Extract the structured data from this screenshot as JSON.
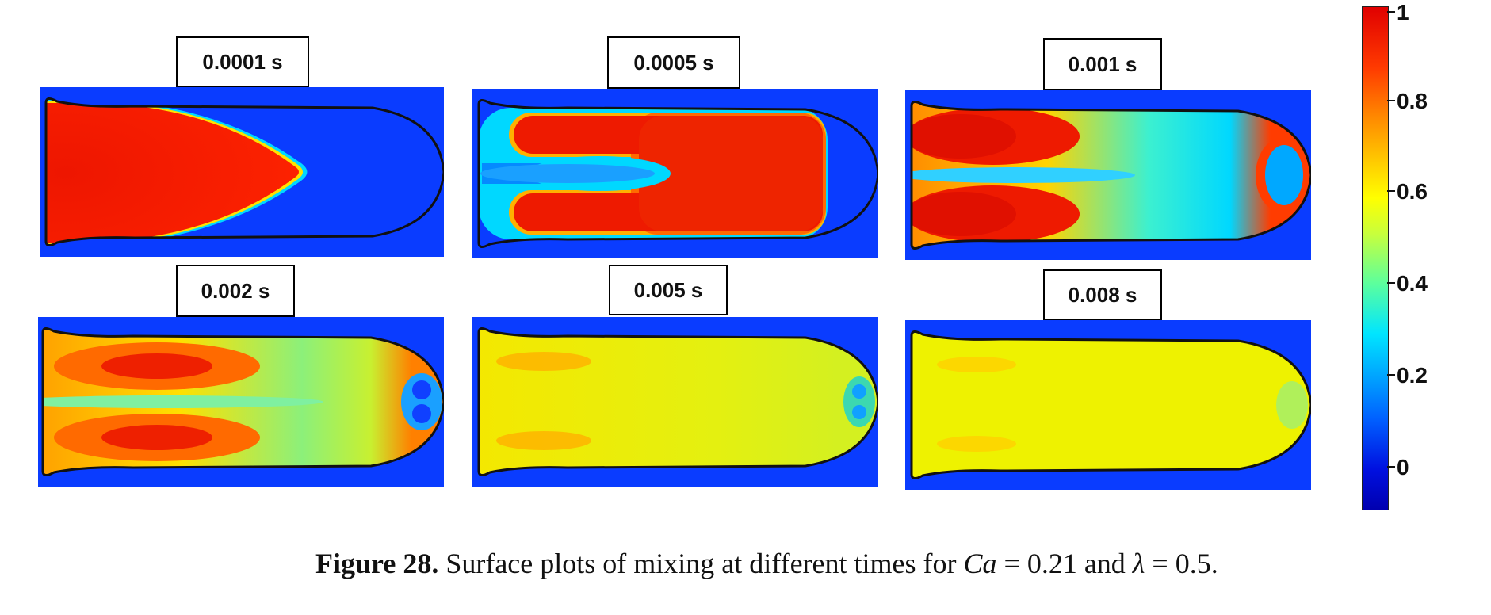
{
  "panels": [
    {
      "time": "0.0001 s"
    },
    {
      "time": "0.0005 s"
    },
    {
      "time": "0.001 s"
    },
    {
      "time": "0.002 s"
    },
    {
      "time": "0.005 s"
    },
    {
      "time": "0.008 s"
    }
  ],
  "colorbar": {
    "ticks": [
      "1",
      "0.8",
      "0.6",
      "0.4",
      "0.2",
      "0"
    ]
  },
  "caption": {
    "label": "Figure 28.",
    "text_1": " Surface plots of mixing at different times for ",
    "var_ca": "Ca",
    "eq_1": " = 0.21 and ",
    "var_lambda": "λ",
    "eq_2": " = 0.5."
  },
  "colors": {
    "background_fluid": "#0a3cff",
    "red": "#ee1a00",
    "yellow": "#eef200"
  }
}
